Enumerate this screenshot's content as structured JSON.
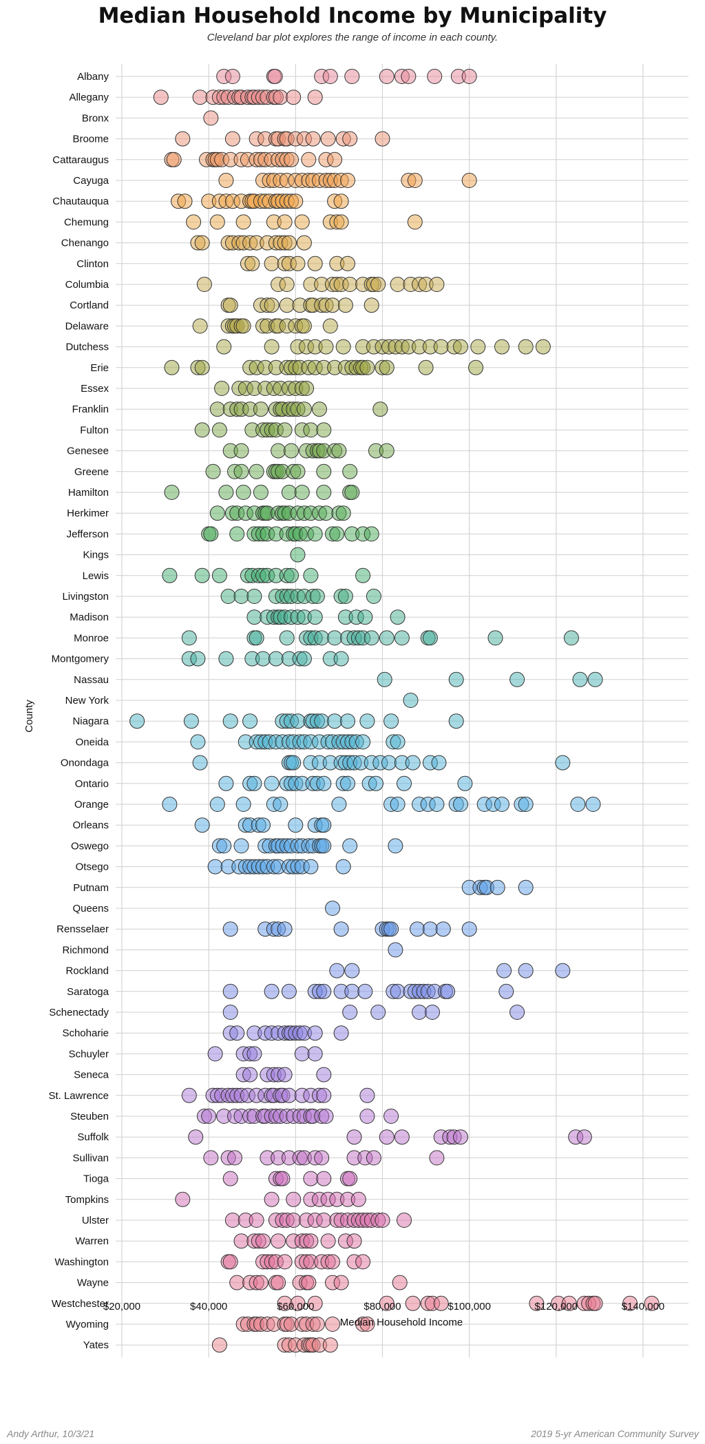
{
  "chart_data": {
    "type": "scatter",
    "title": "Median Household Income by Municipality",
    "subtitle": "Cleveland bar plot explores the range of income in each county.",
    "xlabel": "Median Household Income",
    "ylabel": "County",
    "xlim": [
      20000,
      150000
    ],
    "xticks": [
      20000,
      40000,
      60000,
      80000,
      100000,
      120000,
      140000
    ],
    "xtick_labels": [
      "$20,000",
      "$40,000",
      "$60,000",
      "$80,000",
      "$100,000",
      "$120,000",
      "$140,000"
    ],
    "grid": true,
    "categories": [
      "Albany",
      "Allegany",
      "Bronx",
      "Broome",
      "Cattaraugus",
      "Cayuga",
      "Chautauqua",
      "Chemung",
      "Chenango",
      "Clinton",
      "Columbia",
      "Cortland",
      "Delaware",
      "Dutchess",
      "Erie",
      "Essex",
      "Franklin",
      "Fulton",
      "Genesee",
      "Greene",
      "Hamilton",
      "Herkimer",
      "Jefferson",
      "Kings",
      "Lewis",
      "Livingston",
      "Madison",
      "Monroe",
      "Montgomery",
      "Nassau",
      "New York",
      "Niagara",
      "Oneida",
      "Onondaga",
      "Ontario",
      "Orange",
      "Orleans",
      "Oswego",
      "Otsego",
      "Putnam",
      "Queens",
      "Rensselaer",
      "Richmond",
      "Rockland",
      "Saratoga",
      "Schenectady",
      "Schoharie",
      "Schuyler",
      "Seneca",
      "St. Lawrence",
      "Steuben",
      "Suffolk",
      "Sullivan",
      "Tioga",
      "Tompkins",
      "Ulster",
      "Warren",
      "Washington",
      "Wayne",
      "Westchester",
      "Wyoming",
      "Yates"
    ],
    "colors": [
      "#e8879a",
      "#e98a8a",
      "#ea8f80",
      "#ec9476",
      "#ee9a66",
      "#f0a050",
      "#efa448",
      "#e7a74a",
      "#dba84c",
      "#d2aa4e",
      "#c9ab52",
      "#c0ab52",
      "#b5aa4c",
      "#aaa848",
      "#9ea644",
      "#93a444",
      "#88a446",
      "#7ea64a",
      "#74a84e",
      "#6aaa52",
      "#5faa55",
      "#55ab58",
      "#4bac5a",
      "#44ad66",
      "#44ad74",
      "#45ae82",
      "#46af90",
      "#48b09c",
      "#4ab2a8",
      "#4cb3b3",
      "#4eb4bd",
      "#4fb4c6",
      "#50b3cf",
      "#52b2d6",
      "#54b0dc",
      "#56ade1",
      "#58abe4",
      "#5aa8e6",
      "#5ca5e7",
      "#5fa2e8",
      "#629fe8",
      "#679ae8",
      "#6c95e7",
      "#7390e6",
      "#7a8ce5",
      "#8388e3",
      "#8d84e1",
      "#9780de",
      "#a07cdb",
      "#aa79d7",
      "#b376d2",
      "#bc73cc",
      "#c471c5",
      "#cc70bd",
      "#d36fb4",
      "#d96fab",
      "#de71a3",
      "#e2749c",
      "#e57896",
      "#e77c92",
      "#e8818e",
      "#e9868c"
    ],
    "values": [
      [
        43500,
        45500,
        55000,
        55300,
        66000,
        68000,
        73000,
        81000,
        84500,
        86000,
        92000,
        97500,
        100000
      ],
      [
        29000,
        38000,
        41000,
        42500,
        43500,
        44500,
        46000,
        47000,
        47500,
        49000,
        50000,
        50500,
        51500,
        52500,
        53500,
        55000,
        55500,
        56500,
        59500,
        64500
      ],
      [
        40500
      ],
      [
        34000,
        45500,
        51000,
        53000,
        55500,
        56000,
        57500,
        58000,
        60000,
        62000,
        64000,
        67500,
        71000,
        72500,
        80000
      ],
      [
        31500,
        32000,
        39500,
        41000,
        41500,
        42000,
        43000,
        45000,
        47500,
        49000,
        51000,
        52000,
        53000,
        54500,
        56000,
        57000,
        58000,
        59000,
        63000,
        67000,
        69000
      ],
      [
        44000,
        52500,
        54000,
        55000,
        56500,
        58000,
        60000,
        61500,
        63000,
        64000,
        65500,
        67000,
        68000,
        69000,
        70500,
        72000,
        86000,
        87500,
        100000
      ],
      [
        33000,
        34500,
        40000,
        42500,
        44000,
        45500,
        47500,
        49500,
        50000,
        50500,
        52000,
        53000,
        54000,
        55500,
        56000,
        57000,
        58000,
        59000,
        60000,
        69000,
        70500
      ],
      [
        36500,
        42000,
        48000,
        55000,
        57500,
        61500,
        68000,
        69500,
        70500,
        87500
      ],
      [
        37500,
        38500,
        44500,
        45500,
        47000,
        48000,
        49500,
        51000,
        53500,
        55500,
        56500,
        57500,
        58500,
        62000
      ],
      [
        49000,
        50000,
        54500,
        57500,
        58500,
        60500,
        64500,
        69500,
        72000
      ],
      [
        39000,
        56000,
        58000,
        63500,
        66000,
        68500,
        69500,
        70500,
        72500,
        75500,
        77500,
        78000,
        79000,
        83500,
        86500,
        88500,
        90000,
        92500
      ],
      [
        44500,
        45000,
        52000,
        53500,
        54500,
        58000,
        61000,
        63500,
        64000,
        66000,
        67000,
        68500,
        71500,
        77500
      ],
      [
        38000,
        44500,
        45500,
        46000,
        46500,
        47500,
        48000,
        52500,
        53500,
        55500,
        56000,
        58000,
        60000,
        61500,
        62000,
        68000
      ],
      [
        43500,
        54500,
        60500,
        62500,
        64500,
        67000,
        71000,
        75500,
        78000,
        80000,
        81500,
        83000,
        84500,
        86000,
        88500,
        91000,
        93500,
        96500,
        98000,
        102000,
        107500,
        113000,
        117000
      ],
      [
        31500,
        37500,
        38500,
        49500,
        51000,
        53000,
        55500,
        58000,
        59000,
        60000,
        61000,
        63000,
        64500,
        66500,
        69000,
        71500,
        73000,
        74000,
        75000,
        75500,
        76500,
        80000,
        81000,
        90000,
        101500
      ],
      [
        43000,
        47000,
        48500,
        50500,
        53000,
        55000,
        56500,
        58500,
        60000,
        61500,
        62500
      ],
      [
        42000,
        45000,
        46500,
        47500,
        49500,
        52000,
        55500,
        56500,
        57000,
        58500,
        59500,
        60500,
        62000,
        65500,
        79500
      ],
      [
        38500,
        42500,
        50000,
        52500,
        53500,
        54500,
        55500,
        57500,
        61500,
        63500,
        66500
      ],
      [
        45000,
        47500,
        56000,
        59000,
        62500,
        64000,
        65000,
        65500,
        66500,
        69000,
        70000,
        78500,
        81000
      ],
      [
        41000,
        46000,
        47500,
        51000,
        55000,
        55500,
        56000,
        57000,
        59500,
        60500,
        66500,
        72500
      ],
      [
        31500,
        44000,
        48000,
        52000,
        58500,
        61500,
        66500,
        72500,
        73000
      ],
      [
        42000,
        45500,
        46500,
        48500,
        50500,
        52500,
        53000,
        53500,
        56000,
        57000,
        57500,
        58500,
        60500,
        62000,
        63500,
        65500,
        67000,
        70000,
        71000
      ],
      [
        40000,
        40500,
        46500,
        50500,
        51500,
        52500,
        53500,
        55500,
        58000,
        59500,
        60000,
        61000,
        62500,
        64500,
        68500,
        69500,
        73000,
        75500,
        77500
      ],
      [
        60500
      ],
      [
        31000,
        38500,
        42500,
        49000,
        50000,
        51500,
        52500,
        53500,
        55500,
        58000,
        59000,
        63500,
        75500
      ],
      [
        44500,
        47500,
        50500,
        55500,
        57000,
        58000,
        59000,
        60500,
        62000,
        64000,
        65000,
        70500,
        71500,
        78000
      ],
      [
        50500,
        53500,
        55000,
        56000,
        56500,
        57500,
        59000,
        60500,
        62000,
        64500,
        71500,
        74000,
        76000,
        83500
      ],
      [
        35500,
        50500,
        51000,
        58000,
        62500,
        63500,
        64500,
        66000,
        69000,
        72000,
        73500,
        74500,
        75500,
        77500,
        81000,
        84500,
        90500,
        91000,
        106000,
        123500
      ],
      [
        35500,
        37500,
        44000,
        50000,
        52500,
        55500,
        58500,
        61000,
        62000,
        68000,
        70500
      ],
      [
        80500,
        97000,
        111000,
        125500,
        129000
      ],
      [
        86500
      ],
      [
        23500,
        36000,
        45000,
        49500,
        57000,
        58000,
        59000,
        60500,
        63500,
        64000,
        65000,
        66000,
        69000,
        72000,
        76500,
        82000,
        97000
      ],
      [
        37500,
        48500,
        51000,
        52000,
        53000,
        54000,
        55500,
        57000,
        58500,
        59500,
        61000,
        62000,
        63500,
        65500,
        67500,
        68500,
        70000,
        71000,
        72000,
        73000,
        74000,
        75500,
        82500,
        83500
      ],
      [
        38000,
        58500,
        59000,
        59500,
        63500,
        65500,
        68000,
        70500,
        71500,
        72500,
        73500,
        75000,
        77500,
        79500,
        81500,
        84500,
        87000,
        91000,
        93000,
        121500
      ],
      [
        44000,
        49500,
        50500,
        54500,
        58000,
        59000,
        60000,
        61500,
        64000,
        65000,
        66500,
        71000,
        72000,
        77000,
        78500,
        85000,
        99000
      ],
      [
        31000,
        42000,
        48000,
        55000,
        56500,
        70000,
        82000,
        83500,
        88500,
        90500,
        92500,
        97000,
        98000,
        103500,
        105500,
        107500,
        112000,
        113000,
        125000,
        128500
      ],
      [
        38500,
        48500,
        49500,
        51500,
        52500,
        60000,
        64500,
        66000,
        66500
      ],
      [
        42500,
        43500,
        47500,
        53000,
        54000,
        55500,
        56000,
        57000,
        58000,
        59000,
        60500,
        61500,
        63000,
        64000,
        65500,
        66000,
        66500,
        72500,
        83000
      ],
      [
        41500,
        44500,
        47000,
        48500,
        49500,
        50500,
        51500,
        52500,
        53500,
        55000,
        56000,
        58500,
        59500,
        60500,
        61500,
        63500,
        71000
      ],
      [
        100000,
        102500,
        103500,
        104000,
        106500,
        113000
      ],
      [
        68500
      ],
      [
        45000,
        53000,
        55000,
        56000,
        57500,
        70500,
        80000,
        81000,
        81500,
        82000,
        88000,
        91000,
        94000,
        100000
      ],
      [
        83000
      ],
      [
        69500,
        73000,
        108000,
        113000,
        121500
      ],
      [
        45000,
        54500,
        58500,
        64500,
        65500,
        66500,
        70500,
        73000,
        76000,
        82500,
        83500,
        86500,
        87500,
        88500,
        89500,
        90500,
        92000,
        94500,
        95000,
        108500
      ],
      [
        45000,
        72500,
        79000,
        88500,
        91500,
        111000
      ],
      [
        45000,
        46500,
        50500,
        53000,
        54500,
        56000,
        57500,
        58500,
        59000,
        60000,
        61000,
        62000,
        64500,
        70500
      ],
      [
        41500,
        48000,
        49500,
        50500,
        61500,
        64500
      ],
      [
        48000,
        49500,
        53500,
        55000,
        56000,
        57500,
        66500
      ],
      [
        35500,
        41000,
        42000,
        43000,
        44500,
        45500,
        46500,
        47500,
        49000,
        51000,
        53000,
        54500,
        55000,
        56500,
        57000,
        58500,
        61500,
        63500,
        65500,
        66500,
        76500
      ],
      [
        39000,
        40000,
        43500,
        46000,
        47500,
        49500,
        50500,
        52500,
        53000,
        54500,
        55500,
        56500,
        58000,
        59500,
        61000,
        62000,
        63500,
        64000,
        66000,
        67000,
        76500,
        82000
      ],
      [
        37000,
        73500,
        81000,
        84500,
        93500,
        95500,
        96500,
        98000,
        124500,
        126500
      ],
      [
        40500,
        44500,
        46000,
        53500,
        56000,
        58500,
        61000,
        62000,
        64500,
        66000,
        73500,
        76000,
        78000,
        92500
      ],
      [
        45000,
        55500,
        56500,
        57000,
        63500,
        66500,
        72000,
        72500
      ],
      [
        34000,
        54500,
        59500,
        63500,
        65500,
        67500,
        69500,
        72000,
        74500
      ],
      [
        45500,
        48500,
        51000,
        55500,
        57000,
        58000,
        59500,
        62500,
        64500,
        66500,
        69500,
        70500,
        72000,
        73500,
        74500,
        75500,
        76500,
        77500,
        79000,
        80000,
        85000
      ],
      [
        47500,
        50500,
        51500,
        52500,
        56000,
        59500,
        61500,
        62500,
        63500,
        67500,
        71500,
        73500
      ],
      [
        44500,
        45000,
        52500,
        53500,
        54500,
        55500,
        57500,
        61500,
        62500,
        63500,
        66000,
        67500,
        68500,
        73500,
        75500
      ],
      [
        46500,
        49500,
        51000,
        52000,
        55500,
        56000,
        61000,
        62500,
        63000,
        68500,
        70500,
        84000
      ],
      [
        57500,
        60500,
        64500,
        81000,
        87000,
        90500,
        91500,
        93500,
        115500,
        120500,
        123000,
        126500,
        127500,
        128500,
        129000,
        137000,
        142000
      ],
      [
        48000,
        49000,
        50500,
        51000,
        52000,
        53500,
        55000,
        57500,
        58000,
        59000,
        61500,
        62500,
        64000,
        65000,
        68500,
        75500,
        76500
      ],
      [
        42500,
        57500,
        58500,
        60000,
        62000,
        63000,
        63500,
        64000,
        65500,
        68000
      ]
    ]
  },
  "footer": {
    "left": "Andy Arthur, 10/3/21",
    "right": "2019 5-yr American Community Survey"
  }
}
